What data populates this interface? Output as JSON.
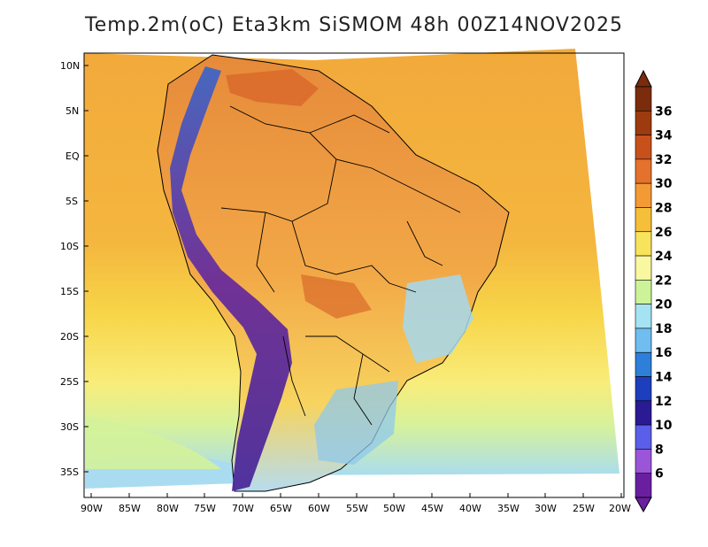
{
  "title": "Temp.2m(oC) Eta3km SiSMOM 48h 00Z14NOV2025",
  "colors": {
    "ocean_warm": "#f2a93b",
    "ocean_mid": "#f7cf45",
    "ocean_cool": "#f9f08a",
    "ocean_cooler": "#d3f29a",
    "ocean_cold": "#a9dcf0",
    "land_base": "#f2b24a",
    "land_hot": "#e57f33",
    "andes_cold": "#6a2c9a",
    "andes_cool": "#3f66c6",
    "south_cool": "#a9d7ef",
    "border": "#000000"
  },
  "lat_labels": [
    "10N",
    "5N",
    "EQ",
    "5S",
    "10S",
    "15S",
    "20S",
    "25S",
    "30S",
    "35S"
  ],
  "lon_labels": [
    "90W",
    "85W",
    "80W",
    "75W",
    "70W",
    "65W",
    "60W",
    "55W",
    "50W",
    "45W",
    "40W",
    "35W",
    "30W",
    "25W",
    "20W"
  ],
  "colorbar": {
    "labels": [
      "36",
      "34",
      "32",
      "30",
      "28",
      "26",
      "24",
      "22",
      "20",
      "18",
      "16",
      "14",
      "12",
      "10",
      "8",
      "6"
    ],
    "colors": [
      "#7a2c0c",
      "#9e3a10",
      "#c8511b",
      "#e4722c",
      "#f39a35",
      "#f6bf3a",
      "#f8e35c",
      "#f9f7a0",
      "#ccf29a",
      "#a5e3f3",
      "#70bdf0",
      "#2d7fd9",
      "#1d3fbd",
      "#2a1a94",
      "#5a5ee8",
      "#9a55d8",
      "#6a1fa0"
    ]
  }
}
